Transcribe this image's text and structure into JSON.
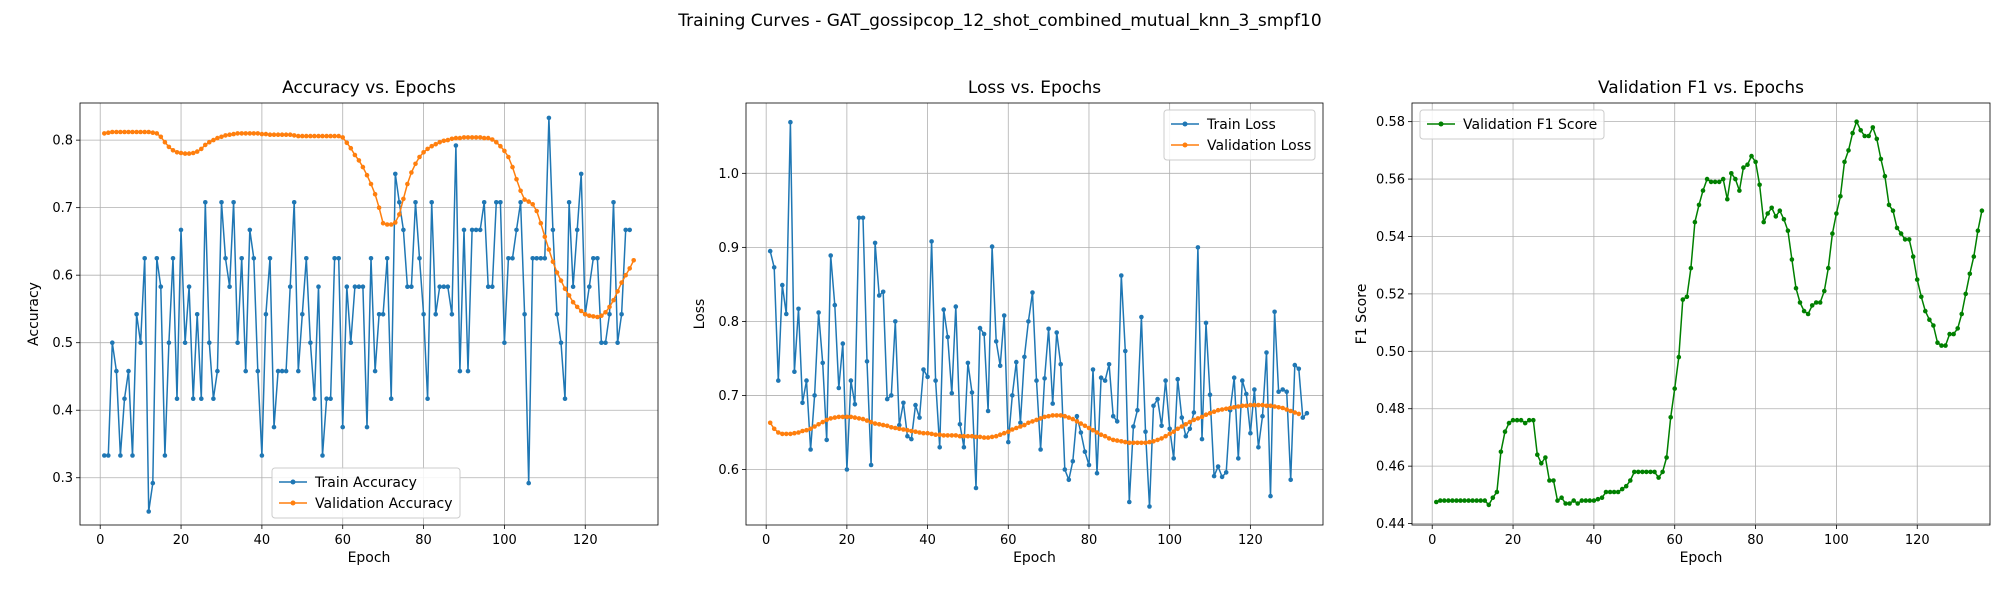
{
  "figure": {
    "suptitle": "Training Curves - GAT_gossipcop_12_shot_combined_mutual_knn_3_smpf10"
  },
  "colors": {
    "blue": "#1f77b4",
    "orange": "#ff7f0e",
    "green": "#008000",
    "grid": "#b0b0b0"
  },
  "chart_data": [
    {
      "type": "line",
      "title": "Accuracy vs. Epochs",
      "xlabel": "Epoch",
      "ylabel": "Accuracy",
      "xlim": [
        -5,
        138
      ],
      "ylim": [
        0.23,
        0.855
      ],
      "xticks": [
        0,
        20,
        40,
        60,
        80,
        100,
        120
      ],
      "yticks": [
        0.3,
        0.4,
        0.5,
        0.6,
        0.7,
        0.8
      ],
      "grid": true,
      "legend": "lower center",
      "series": [
        {
          "name": "Train Accuracy",
          "color": "blue",
          "x_start": 1,
          "values": [
            0.333,
            0.333,
            0.5,
            0.458,
            0.333,
            0.417,
            0.458,
            0.333,
            0.542,
            0.5,
            0.625,
            0.25,
            0.292,
            0.625,
            0.583,
            0.333,
            0.5,
            0.625,
            0.417,
            0.667,
            0.5,
            0.583,
            0.417,
            0.542,
            0.417,
            0.708,
            0.5,
            0.417,
            0.458,
            0.708,
            0.625,
            0.583,
            0.708,
            0.5,
            0.625,
            0.458,
            0.667,
            0.625,
            0.458,
            0.333,
            0.542,
            0.625,
            0.375,
            0.458,
            0.458,
            0.458,
            0.583,
            0.708,
            0.458,
            0.542,
            0.625,
            0.5,
            0.417,
            0.583,
            0.333,
            0.417,
            0.417,
            0.625,
            0.625,
            0.375,
            0.583,
            0.5,
            0.583,
            0.583,
            0.583,
            0.375,
            0.625,
            0.458,
            0.542,
            0.542,
            0.625,
            0.417,
            0.75,
            0.708,
            0.667,
            0.583,
            0.583,
            0.708,
            0.625,
            0.542,
            0.417,
            0.708,
            0.542,
            0.583,
            0.583,
            0.583,
            0.542,
            0.792,
            0.458,
            0.667,
            0.458,
            0.667,
            0.667,
            0.667,
            0.708,
            0.583,
            0.583,
            0.708,
            0.708,
            0.5,
            0.625,
            0.625,
            0.667,
            0.708,
            0.542,
            0.292,
            0.625,
            0.625,
            0.625,
            0.625,
            0.833,
            0.667,
            0.542,
            0.5,
            0.417,
            0.708,
            0.583,
            0.667,
            0.75,
            0.542,
            0.583,
            0.625,
            0.625,
            0.5,
            0.5,
            0.542,
            0.708,
            0.5,
            0.542,
            0.667,
            0.667
          ]
        },
        {
          "name": "Validation Accuracy",
          "color": "orange",
          "x_start": 1,
          "values": [
            0.81,
            0.811,
            0.812,
            0.812,
            0.812,
            0.812,
            0.812,
            0.812,
            0.812,
            0.812,
            0.812,
            0.812,
            0.811,
            0.81,
            0.805,
            0.797,
            0.79,
            0.785,
            0.782,
            0.781,
            0.78,
            0.78,
            0.781,
            0.783,
            0.787,
            0.793,
            0.797,
            0.8,
            0.803,
            0.805,
            0.807,
            0.808,
            0.809,
            0.81,
            0.81,
            0.81,
            0.81,
            0.81,
            0.81,
            0.809,
            0.809,
            0.808,
            0.808,
            0.808,
            0.808,
            0.808,
            0.808,
            0.807,
            0.806,
            0.806,
            0.806,
            0.806,
            0.806,
            0.806,
            0.806,
            0.806,
            0.806,
            0.806,
            0.806,
            0.804,
            0.796,
            0.788,
            0.778,
            0.77,
            0.76,
            0.748,
            0.735,
            0.72,
            0.7,
            0.677,
            0.675,
            0.675,
            0.678,
            0.69,
            0.713,
            0.735,
            0.752,
            0.765,
            0.775,
            0.782,
            0.787,
            0.791,
            0.794,
            0.797,
            0.799,
            0.8,
            0.802,
            0.803,
            0.803,
            0.804,
            0.804,
            0.804,
            0.804,
            0.804,
            0.803,
            0.803,
            0.801,
            0.797,
            0.791,
            0.784,
            0.775,
            0.76,
            0.742,
            0.725,
            0.712,
            0.709,
            0.705,
            0.695,
            0.677,
            0.657,
            0.638,
            0.62,
            0.604,
            0.592,
            0.58,
            0.57,
            0.56,
            0.553,
            0.547,
            0.542,
            0.54,
            0.539,
            0.538,
            0.54,
            0.545,
            0.553,
            0.563,
            0.576,
            0.589,
            0.6,
            0.61,
            0.622
          ]
        }
      ]
    },
    {
      "type": "line",
      "title": "Loss vs. Epochs",
      "xlabel": "Epoch",
      "ylabel": "Loss",
      "xlim": [
        -5,
        138
      ],
      "ylim": [
        0.525,
        1.095
      ],
      "xticks": [
        0,
        20,
        40,
        60,
        80,
        100,
        120
      ],
      "yticks": [
        0.6,
        0.7,
        0.8,
        0.9,
        1.0
      ],
      "grid": true,
      "legend": "upper right",
      "series": [
        {
          "name": "Train Loss",
          "color": "blue",
          "x_start": 1,
          "values": [
            0.895,
            0.873,
            0.72,
            0.849,
            0.81,
            1.069,
            0.732,
            0.817,
            0.69,
            0.72,
            0.627,
            0.7,
            0.812,
            0.744,
            0.64,
            0.889,
            0.822,
            0.71,
            0.77,
            0.6,
            0.72,
            0.688,
            0.94,
            0.94,
            0.746,
            0.606,
            0.906,
            0.835,
            0.84,
            0.695,
            0.7,
            0.8,
            0.66,
            0.69,
            0.645,
            0.641,
            0.687,
            0.67,
            0.735,
            0.725,
            0.908,
            0.72,
            0.63,
            0.816,
            0.779,
            0.703,
            0.82,
            0.661,
            0.63,
            0.744,
            0.704,
            0.575,
            0.791,
            0.783,
            0.679,
            0.901,
            0.773,
            0.74,
            0.808,
            0.637,
            0.7,
            0.745,
            0.663,
            0.752,
            0.8,
            0.839,
            0.72,
            0.627,
            0.723,
            0.79,
            0.689,
            0.785,
            0.742,
            0.6,
            0.586,
            0.611,
            0.672,
            0.65,
            0.624,
            0.606,
            0.735,
            0.595,
            0.724,
            0.72,
            0.742,
            0.672,
            0.665,
            0.862,
            0.76,
            0.556,
            0.658,
            0.68,
            0.806,
            0.651,
            0.55,
            0.686,
            0.695,
            0.659,
            0.72,
            0.655,
            0.615,
            0.722,
            0.67,
            0.645,
            0.655,
            0.677,
            0.9,
            0.641,
            0.798,
            0.701,
            0.591,
            0.604,
            0.59,
            0.596,
            0.68,
            0.724,
            0.615,
            0.72,
            0.702,
            0.649,
            0.708,
            0.63,
            0.672,
            0.758,
            0.564,
            0.813,
            0.705,
            0.708,
            0.705,
            0.586,
            0.741,
            0.736,
            0.67,
            0.676
          ]
        },
        {
          "name": "Validation Loss",
          "color": "orange",
          "x_start": 1,
          "values": [
            0.663,
            0.655,
            0.65,
            0.648,
            0.648,
            0.648,
            0.649,
            0.65,
            0.652,
            0.653,
            0.655,
            0.658,
            0.661,
            0.664,
            0.667,
            0.669,
            0.67,
            0.671,
            0.671,
            0.671,
            0.671,
            0.67,
            0.669,
            0.668,
            0.666,
            0.664,
            0.662,
            0.661,
            0.66,
            0.659,
            0.657,
            0.656,
            0.655,
            0.654,
            0.653,
            0.652,
            0.651,
            0.65,
            0.649,
            0.649,
            0.648,
            0.647,
            0.647,
            0.646,
            0.646,
            0.646,
            0.646,
            0.645,
            0.645,
            0.645,
            0.645,
            0.644,
            0.644,
            0.643,
            0.643,
            0.644,
            0.645,
            0.647,
            0.649,
            0.651,
            0.654,
            0.656,
            0.658,
            0.66,
            0.663,
            0.665,
            0.667,
            0.669,
            0.671,
            0.672,
            0.673,
            0.673,
            0.673,
            0.672,
            0.67,
            0.668,
            0.665,
            0.662,
            0.659,
            0.656,
            0.653,
            0.65,
            0.647,
            0.645,
            0.642,
            0.64,
            0.639,
            0.638,
            0.637,
            0.636,
            0.636,
            0.636,
            0.636,
            0.636,
            0.637,
            0.638,
            0.64,
            0.642,
            0.645,
            0.648,
            0.651,
            0.655,
            0.658,
            0.661,
            0.664,
            0.667,
            0.669,
            0.671,
            0.674,
            0.676,
            0.678,
            0.68,
            0.681,
            0.682,
            0.683,
            0.684,
            0.685,
            0.686,
            0.686,
            0.687,
            0.687,
            0.687,
            0.687,
            0.686,
            0.686,
            0.685,
            0.684,
            0.683,
            0.681,
            0.679,
            0.677,
            0.675
          ]
        }
      ]
    },
    {
      "type": "line",
      "title": "Validation F1 vs. Epochs",
      "xlabel": "Epoch",
      "ylabel": "F1 Score",
      "xlim": [
        -5,
        138
      ],
      "ylim": [
        0.4395,
        0.5865
      ],
      "xticks": [
        0,
        20,
        40,
        60,
        80,
        100,
        120
      ],
      "yticks": [
        0.44,
        0.46,
        0.48,
        0.5,
        0.52,
        0.54,
        0.56,
        0.58
      ],
      "grid": true,
      "legend": "upper left",
      "series": [
        {
          "name": "Validation F1 Score",
          "color": "green",
          "x_start": 1,
          "values": [
            0.4475,
            0.448,
            0.448,
            0.448,
            0.448,
            0.448,
            0.448,
            0.448,
            0.448,
            0.448,
            0.448,
            0.448,
            0.448,
            0.4465,
            0.449,
            0.451,
            0.465,
            0.472,
            0.475,
            0.476,
            0.476,
            0.476,
            0.475,
            0.476,
            0.476,
            0.464,
            0.461,
            0.463,
            0.455,
            0.455,
            0.448,
            0.449,
            0.447,
            0.447,
            0.448,
            0.447,
            0.448,
            0.448,
            0.448,
            0.448,
            0.4485,
            0.449,
            0.451,
            0.451,
            0.451,
            0.451,
            0.452,
            0.453,
            0.455,
            0.458,
            0.458,
            0.458,
            0.458,
            0.458,
            0.458,
            0.456,
            0.458,
            0.463,
            0.477,
            0.487,
            0.498,
            0.518,
            0.519,
            0.529,
            0.545,
            0.551,
            0.556,
            0.56,
            0.559,
            0.559,
            0.559,
            0.56,
            0.553,
            0.562,
            0.56,
            0.556,
            0.564,
            0.565,
            0.568,
            0.566,
            0.558,
            0.545,
            0.548,
            0.55,
            0.547,
            0.549,
            0.546,
            0.542,
            0.532,
            0.522,
            0.517,
            0.514,
            0.513,
            0.516,
            0.517,
            0.517,
            0.521,
            0.529,
            0.541,
            0.548,
            0.554,
            0.566,
            0.57,
            0.576,
            0.58,
            0.577,
            0.575,
            0.575,
            0.578,
            0.574,
            0.567,
            0.561,
            0.551,
            0.549,
            0.543,
            0.541,
            0.539,
            0.539,
            0.533,
            0.525,
            0.519,
            0.514,
            0.511,
            0.509,
            0.503,
            0.502,
            0.502,
            0.506,
            0.506,
            0.508,
            0.513,
            0.52,
            0.527,
            0.533,
            0.542,
            0.549
          ]
        }
      ]
    }
  ]
}
